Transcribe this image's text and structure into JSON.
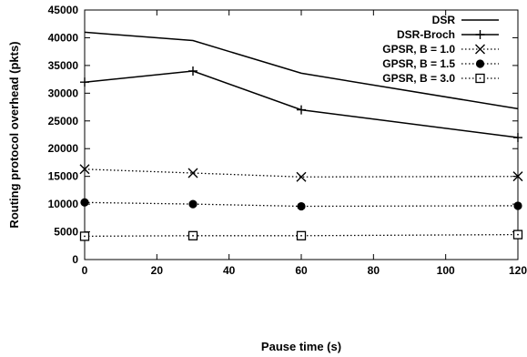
{
  "chart_data": {
    "type": "line",
    "xlabel": "Pause time (s)",
    "ylabel": "Routing protocol overhead (pkts)",
    "xlim": [
      0,
      120
    ],
    "ylim": [
      0,
      45000
    ],
    "xticks": [
      0,
      20,
      40,
      60,
      80,
      100,
      120
    ],
    "yticks": [
      0,
      5000,
      10000,
      15000,
      20000,
      25000,
      30000,
      35000,
      40000,
      45000
    ],
    "grid": false,
    "legend_position": "top-right",
    "x": [
      0,
      30,
      60,
      120
    ],
    "series": [
      {
        "name": "DSR",
        "values": [
          41000,
          39500,
          33600,
          27200
        ],
        "marker": "none",
        "line": "solid",
        "color": "#000000"
      },
      {
        "name": "DSR-Broch",
        "values": [
          32000,
          34000,
          27000,
          22000
        ],
        "marker": "plus",
        "line": "solid",
        "color": "#000000"
      },
      {
        "name": "GPSR, B = 1.0",
        "values": [
          16300,
          15600,
          14900,
          15000
        ],
        "marker": "cross",
        "line": "dotted",
        "color": "#000000"
      },
      {
        "name": "GPSR, B = 1.5",
        "values": [
          10300,
          10000,
          9600,
          9700
        ],
        "marker": "filled-circle",
        "line": "dotted",
        "color": "#000000"
      },
      {
        "name": "GPSR, B = 3.0",
        "values": [
          4200,
          4300,
          4300,
          4500
        ],
        "marker": "open-square",
        "line": "dotted",
        "color": "#000000"
      }
    ]
  }
}
